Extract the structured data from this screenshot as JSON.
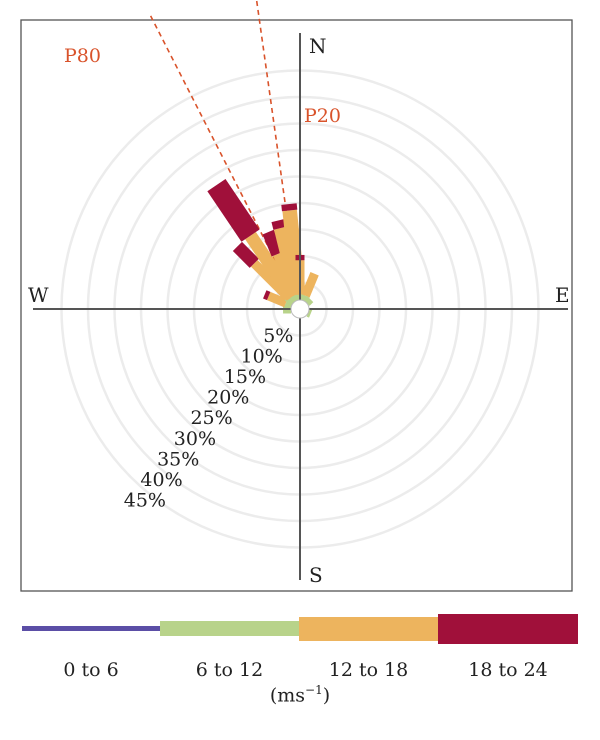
{
  "chart_data": {
    "type": "windrose",
    "directions": {
      "north": "N",
      "south": "S",
      "east": "E",
      "west": "W"
    },
    "radial_ticks": [
      "5%",
      "10%",
      "15%",
      "20%",
      "25%",
      "30%",
      "35%",
      "40%",
      "45%"
    ],
    "radial_values": [
      5,
      10,
      15,
      20,
      25,
      30,
      35,
      40,
      45
    ],
    "rmax_percent": 45,
    "grid": true,
    "reference_lines": [
      {
        "label": "P80",
        "bearing": 333,
        "color": "#d9532b"
      },
      {
        "label": "P20",
        "bearing": 352,
        "color": "#d9532b"
      }
    ],
    "bins": [
      {
        "label": "0 to 6",
        "color": "#5b4ea6"
      },
      {
        "label": "6 to 12",
        "color": "#b8d38a"
      },
      {
        "label": "12 to 18",
        "color": "#edb45e"
      },
      {
        "label": "18 to 24",
        "color": "#a0103a"
      }
    ],
    "units_base": "(ms",
    "units_sup": "−1",
    "units_close": ")",
    "sectors": [
      {
        "bearing": 270,
        "stack": [
          0,
          1.5,
          0,
          0
        ]
      },
      {
        "bearing": 292.5,
        "stack": [
          0,
          1.2,
          3.5,
          0.8
        ]
      },
      {
        "bearing": 315,
        "stack": [
          0,
          1.5,
          9.0,
          4.5
        ]
      },
      {
        "bearing": 326,
        "stack": [
          0,
          1.0,
          14.0,
          11.5
        ]
      },
      {
        "bearing": 337.5,
        "stack": [
          0,
          1.0,
          8.5,
          4.5
        ]
      },
      {
        "bearing": 346,
        "stack": [
          0,
          1.0,
          13.0,
          1.5
        ]
      },
      {
        "bearing": 354,
        "stack": [
          0,
          1.0,
          16.0,
          1.2
        ]
      },
      {
        "bearing": 0,
        "stack": [
          0,
          1.0,
          6.5,
          1.0
        ]
      },
      {
        "bearing": 22.5,
        "stack": [
          0,
          1.0,
          4.5,
          0
        ]
      },
      {
        "bearing": 45,
        "stack": [
          0,
          1.0,
          0,
          0
        ]
      },
      {
        "bearing": 112.5,
        "stack": [
          0,
          0.5,
          0,
          0
        ]
      }
    ]
  }
}
